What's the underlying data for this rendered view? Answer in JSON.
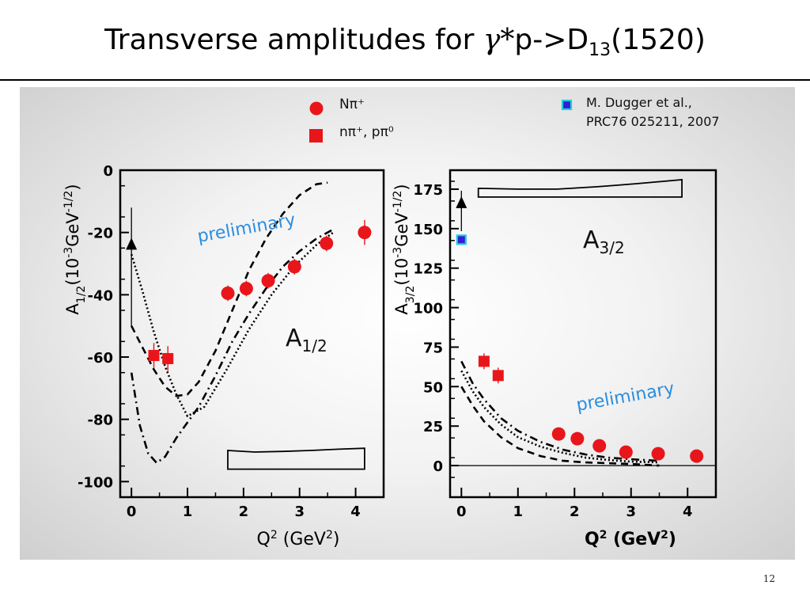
{
  "slide": {
    "title_main": "Transverse amplitudes for ",
    "title_gamma": "γ*",
    "title_rest": "p->D",
    "title_sub": "13",
    "title_tail": "(1520)",
    "page_number": "12"
  },
  "legend": {
    "npi_plus": "Nπ⁺",
    "npi_plus_ppi0": "nπ⁺, pπ⁰",
    "dugger_line1": "M. Dugger et al.,",
    "dugger_line2": "PRC76 025211, 2007"
  },
  "colors": {
    "data_red": "#e8161b",
    "prelim_blue": "#2a8de0",
    "dugger_fill": "#3a1ad6",
    "dugger_edge": "#18d2d8"
  },
  "chart_data": [
    {
      "type": "scatter",
      "panel_label": "A",
      "panel_label_sub": "1/2",
      "annotation": "preliminary",
      "ylabel": "A1/2(10-3GeV-1/2)",
      "xlabel": "Q2 (GeV2)",
      "xlim": [
        -0.2,
        4.5
      ],
      "ylim": [
        -105,
        0
      ],
      "xticks": [
        "0",
        "1",
        "2",
        "3",
        "4"
      ],
      "yticks": [
        "0",
        "-20",
        "-40",
        "-60",
        "-80",
        "-100"
      ],
      "series": [
        {
          "name": "Nπ⁺",
          "marker": "circle",
          "points": [
            [
              1.72,
              -39.5,
              2.5
            ],
            [
              2.05,
              -38,
              2.5
            ],
            [
              2.44,
              -35.5,
              2.5
            ],
            [
              2.91,
              -31,
              2.5
            ],
            [
              3.48,
              -23.5,
              2.5
            ],
            [
              4.16,
              -20,
              4
            ]
          ]
        },
        {
          "name": "nπ⁺, pπ⁰",
          "marker": "square",
          "points": [
            [
              0.4,
              -59.5,
              4
            ],
            [
              0.65,
              -60.5,
              4
            ]
          ]
        },
        {
          "name": "",
          "marker": "triangle",
          "points": [
            [
              0.0,
              -24,
              12
            ]
          ]
        }
      ],
      "curves": [
        {
          "style": "dashed",
          "x": [
            0.0,
            0.2,
            0.4,
            0.6,
            0.8,
            1.0,
            1.2,
            1.5,
            1.8,
            2.1,
            2.4,
            2.7,
            3.0,
            3.3,
            3.5
          ],
          "y": [
            -50,
            -57,
            -64,
            -69.5,
            -72.5,
            -72,
            -68,
            -58,
            -45,
            -32,
            -22,
            -14,
            -8,
            -4.5,
            -4
          ]
        },
        {
          "style": "dotted",
          "x": [
            0.0,
            0.2,
            0.4,
            0.6,
            0.8,
            1.0,
            1.3,
            1.7,
            2.1,
            2.5,
            2.9,
            3.3,
            3.6
          ],
          "y": [
            -27,
            -39,
            -52,
            -63,
            -72,
            -79,
            -76,
            -64,
            -51,
            -40,
            -31,
            -24,
            -20
          ]
        },
        {
          "style": "dashdot",
          "x": [
            0.0,
            0.15,
            0.3,
            0.45,
            0.6,
            0.8,
            1.0,
            1.2,
            1.5,
            1.8,
            2.1,
            2.4,
            2.7,
            3.0,
            3.3,
            3.6
          ],
          "y": [
            -65,
            -82,
            -91,
            -94,
            -92,
            -86,
            -81,
            -76,
            -66,
            -55,
            -46,
            -38,
            -31,
            -26,
            -22,
            -19
          ]
        }
      ],
      "band": {
        "x": [
          1.72,
          2.2,
          2.7,
          3.2,
          3.7,
          4.16
        ],
        "upper": [
          -90,
          -90.5,
          -90.3,
          -90,
          -89.6,
          -89.3
        ],
        "lower": [
          -96,
          -96,
          -96,
          -96,
          -96,
          -96
        ]
      }
    },
    {
      "type": "scatter",
      "panel_label": "A",
      "panel_label_sub": "3/2",
      "annotation": "preliminary",
      "ylabel": "A3/2(10-3GeV-1/2)",
      "xlabel": "Q2 (GeV2)",
      "xlim": [
        -0.2,
        4.5
      ],
      "ylim": [
        -20,
        187
      ],
      "xticks": [
        "0",
        "1",
        "2",
        "3",
        "4"
      ],
      "yticks": [
        "175",
        "150",
        "125",
        "100",
        "75",
        "50",
        "25",
        "0"
      ],
      "series": [
        {
          "name": "Nπ⁺",
          "marker": "circle",
          "points": [
            [
              1.72,
              20,
              3
            ],
            [
              2.05,
              17,
              3
            ],
            [
              2.44,
              12.5,
              3
            ],
            [
              2.91,
              8.5,
              3
            ],
            [
              3.48,
              7.5,
              3
            ],
            [
              4.16,
              6,
              3
            ]
          ]
        },
        {
          "name": "nπ⁺, pπ⁰",
          "marker": "square",
          "points": [
            [
              0.4,
              66,
              5
            ],
            [
              0.65,
              57,
              5
            ]
          ]
        },
        {
          "name": "",
          "marker": "triangle",
          "points": [
            [
              0.0,
              166,
              8
            ]
          ]
        },
        {
          "name": "M. Dugger et al., PRC76 025211, 2007",
          "marker": "small-square",
          "points": [
            [
              0.0,
              143,
              0
            ]
          ]
        }
      ],
      "curves": [
        {
          "style": "dashed",
          "x": [
            0.0,
            0.2,
            0.4,
            0.7,
            1.0,
            1.4,
            1.8,
            2.2,
            2.6,
            3.0,
            3.5
          ],
          "y": [
            50,
            38,
            28,
            18,
            11,
            6,
            3,
            2,
            1.5,
            1,
            0
          ]
        },
        {
          "style": "dotted",
          "x": [
            0.0,
            0.2,
            0.4,
            0.7,
            1.0,
            1.4,
            1.8,
            2.2,
            2.6,
            3.0,
            3.5
          ],
          "y": [
            60,
            47,
            37,
            26,
            18,
            12,
            8,
            5,
            3.5,
            2.5,
            2
          ]
        },
        {
          "style": "dashdot",
          "x": [
            0.0,
            0.2,
            0.4,
            0.7,
            1.0,
            1.4,
            1.8,
            2.2,
            2.6,
            3.0,
            3.5
          ],
          "y": [
            66,
            52,
            42,
            30,
            22,
            15,
            10,
            7,
            5,
            4,
            3
          ]
        }
      ],
      "zero_line": true,
      "band": {
        "x": [
          0.3,
          1.0,
          1.7,
          2.4,
          3.1,
          3.9
        ],
        "upper": [
          175.5,
          175,
          175,
          176.5,
          178.5,
          181
        ],
        "lower": [
          170,
          170,
          170,
          170,
          170,
          170
        ]
      }
    }
  ]
}
